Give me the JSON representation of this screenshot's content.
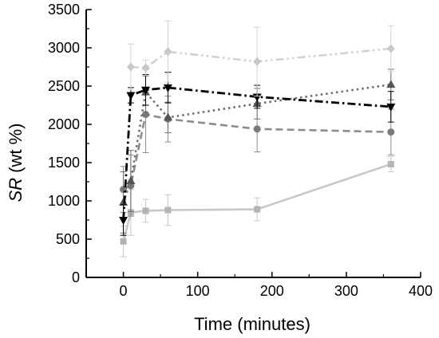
{
  "chart_data": {
    "type": "line",
    "title": "",
    "xlabel": "Time (minutes)",
    "ylabel": {
      "italic": "SR",
      "rest": " (wt %)"
    },
    "xlim": [
      -50,
      400
    ],
    "ylim": [
      0,
      3500
    ],
    "xticks": [
      0,
      100,
      200,
      300,
      400
    ],
    "yticks": [
      0,
      500,
      1000,
      1500,
      2000,
      2500,
      3000,
      3500
    ],
    "grid": false,
    "legend": "none",
    "series": [
      {
        "marker": "square",
        "dash": "solid",
        "color": "#c8c8c8",
        "marker_color": "#b4b4b4",
        "x": [
          0,
          10,
          30,
          60,
          180,
          360
        ],
        "y": [
          470,
          850,
          870,
          880,
          890,
          1480
        ],
        "err": [
          200,
          300,
          150,
          200,
          150,
          100
        ]
      },
      {
        "marker": "circle",
        "dash": "dash",
        "color": "#8c8c8c",
        "marker_color": "#7a7a7a",
        "x": [
          0,
          10,
          30,
          60,
          180,
          360
        ],
        "y": [
          1150,
          1200,
          2130,
          2070,
          1940,
          1900
        ],
        "err": [
          300,
          400,
          500,
          300,
          300,
          300
        ]
      },
      {
        "marker": "triangle-up",
        "dash": "dot",
        "color": "#6e6e6e",
        "marker_color": "#555555",
        "x": [
          0,
          10,
          30,
          60,
          180,
          360
        ],
        "y": [
          980,
          1260,
          2420,
          2090,
          2270,
          2520
        ],
        "err": [
          400,
          400,
          300,
          200,
          200,
          200
        ]
      },
      {
        "marker": "triangle-down",
        "dash": "dashdot",
        "color": "#000000",
        "marker_color": "#000000",
        "x": [
          0,
          10,
          30,
          60,
          180,
          360
        ],
        "y": [
          750,
          2380,
          2450,
          2480,
          2360,
          2230
        ],
        "err": [
          200,
          100,
          200,
          200,
          150,
          200
        ]
      },
      {
        "marker": "diamond",
        "dash": "dashdotdot",
        "color": "#d2d2d2",
        "marker_color": "#c8c8c8",
        "x": [
          10,
          30,
          60,
          180,
          360
        ],
        "y": [
          2750,
          2740,
          2950,
          2820,
          2990
        ],
        "err": [
          300,
          100,
          400,
          450,
          300
        ]
      }
    ]
  }
}
